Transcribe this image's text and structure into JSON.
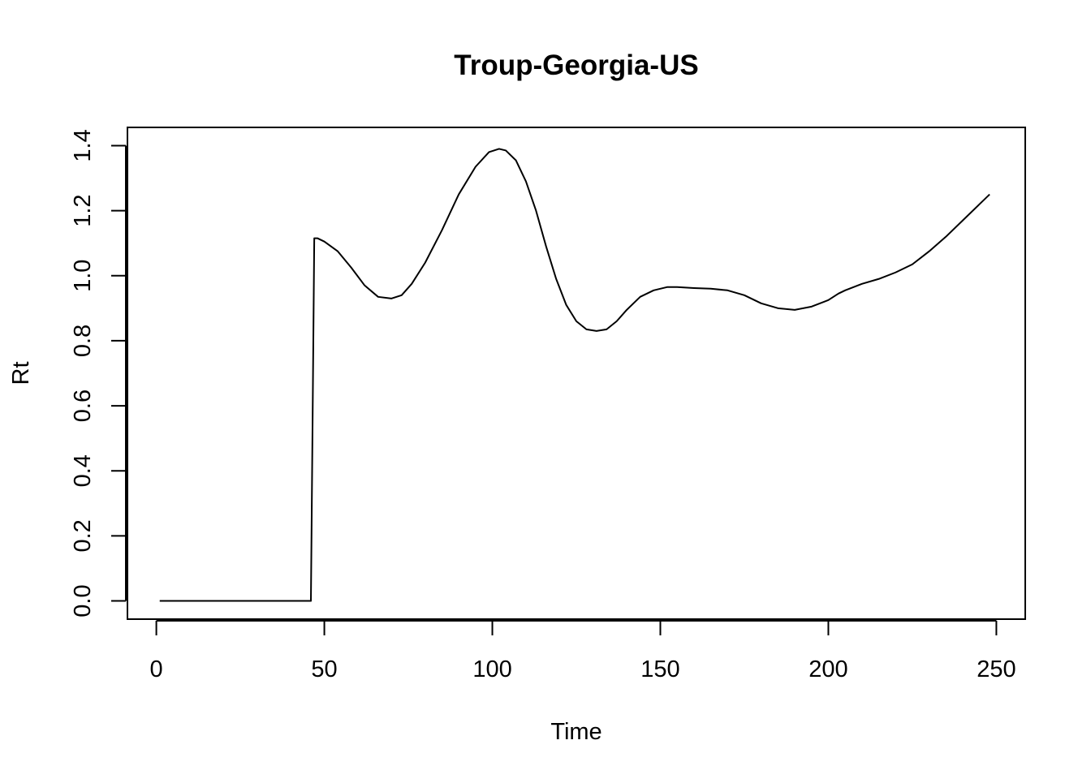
{
  "chart_data": {
    "type": "line",
    "title": "Troup-Georgia-US",
    "xlabel": "Time",
    "ylabel": "Rt",
    "xlim": [
      -8.6,
      258.6
    ],
    "ylim": [
      -0.056,
      1.456
    ],
    "x_ticks": [
      0,
      50,
      100,
      150,
      200,
      250
    ],
    "y_ticks": [
      0.0,
      0.2,
      0.4,
      0.6,
      0.8,
      1.0,
      1.2,
      1.4
    ],
    "x_tick_labels": [
      "0",
      "50",
      "100",
      "150",
      "200",
      "250"
    ],
    "y_tick_labels": [
      "0.0",
      "0.2",
      "0.4",
      "0.6",
      "0.8",
      "1.0",
      "1.2",
      "1.4"
    ],
    "grid": false,
    "legend": "none",
    "line_color": "#000000",
    "series": [
      {
        "x": [
          1,
          10,
          20,
          30,
          40,
          46,
          46.5,
          47,
          48,
          50,
          54,
          58,
          62,
          66,
          70,
          73,
          76,
          80,
          85,
          90,
          95,
          99,
          102,
          104,
          107,
          110,
          113,
          116,
          119,
          122,
          125,
          128,
          131,
          134,
          137,
          140,
          144,
          148,
          152,
          155,
          160,
          165,
          170,
          175,
          180,
          185,
          190,
          195,
          200,
          203,
          205,
          210,
          215,
          220,
          225,
          230,
          235,
          240,
          245,
          248
        ],
        "y": [
          0.0,
          0.0,
          0.0,
          0.0,
          0.0,
          0.0,
          0.55,
          1.115,
          1.115,
          1.105,
          1.075,
          1.025,
          0.97,
          0.935,
          0.93,
          0.94,
          0.975,
          1.04,
          1.14,
          1.25,
          1.335,
          1.38,
          1.39,
          1.385,
          1.355,
          1.29,
          1.2,
          1.09,
          0.99,
          0.91,
          0.86,
          0.835,
          0.83,
          0.835,
          0.86,
          0.895,
          0.935,
          0.955,
          0.965,
          0.965,
          0.962,
          0.96,
          0.955,
          0.94,
          0.915,
          0.9,
          0.895,
          0.905,
          0.925,
          0.945,
          0.955,
          0.975,
          0.99,
          1.01,
          1.035,
          1.075,
          1.12,
          1.17,
          1.22,
          1.25
        ]
      }
    ]
  }
}
